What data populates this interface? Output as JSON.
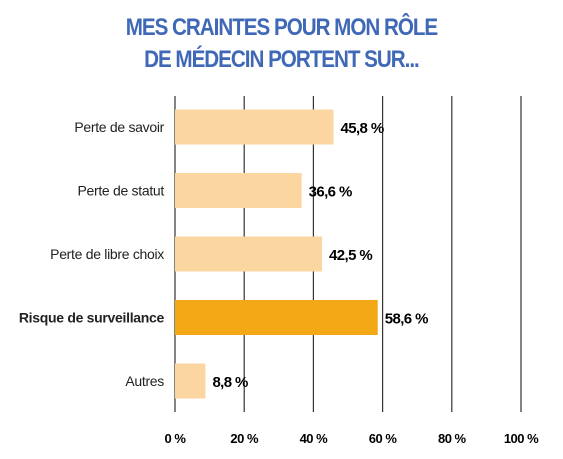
{
  "title_line1": "MES CRAINTES POUR MON RÔLE",
  "title_line2": "DE MÉDECIN PORTENT SUR...",
  "colors": {
    "title": "#3f68b6",
    "bar": "#fcd6a0",
    "bar_highlight": "#f5a815",
    "grid": "#333333"
  },
  "chart_data": {
    "type": "bar",
    "orientation": "horizontal",
    "categories": [
      "Perte de savoir",
      "Perte de statut",
      "Perte de libre choix",
      "Risque de surveillance",
      "Autres"
    ],
    "values": [
      45.8,
      36.6,
      42.5,
      58.6,
      8.8
    ],
    "value_labels": [
      "45,8 %",
      "36,6 %",
      "42,5 %",
      "58,6 %",
      "8,8 %"
    ],
    "highlight_index": 3,
    "xlim": [
      0,
      100
    ],
    "xticks": [
      0,
      20,
      40,
      60,
      80,
      100
    ],
    "xtick_labels": [
      "0 %",
      "20 %",
      "40 %",
      "60 %",
      "80 %",
      "100 %"
    ],
    "grid": true
  }
}
